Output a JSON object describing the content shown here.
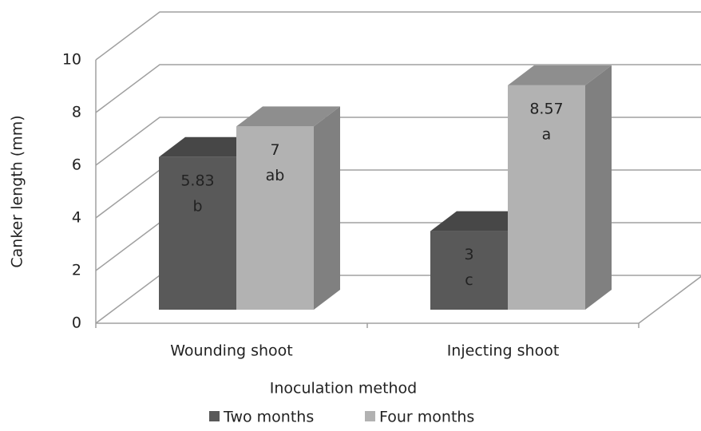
{
  "chart_data": {
    "type": "bar3d",
    "categories": [
      "Wounding shoot",
      "Injecting shoot"
    ],
    "series": [
      {
        "name": "Two months",
        "color": "#595959",
        "values": [
          5.83,
          3
        ],
        "letters": [
          "b",
          "c"
        ]
      },
      {
        "name": "Four months",
        "color": "#b2b2b2",
        "values": [
          7,
          8.57
        ],
        "letters": [
          "ab",
          "a"
        ]
      }
    ],
    "xlabel": "Inoculation method",
    "ylabel": "Canker length (mm)",
    "ylim": [
      0,
      10
    ],
    "yticks": [
      0,
      2,
      4,
      6,
      8,
      10
    ],
    "grid": true,
    "legend": "bottom"
  }
}
